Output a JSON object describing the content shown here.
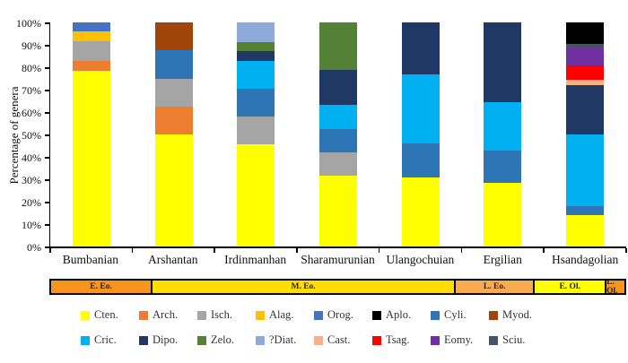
{
  "chart_data": {
    "type": "bar",
    "variant": "stacked-percentage",
    "title": "",
    "ylabel": "Percentage of genera",
    "xlabel": "",
    "ylim": [
      0,
      100
    ],
    "grid": false,
    "y_tick_labels": [
      "0%",
      "10%",
      "20%",
      "30%",
      "40%",
      "50%",
      "60%",
      "70%",
      "80%",
      "90%",
      "100%"
    ],
    "categories": [
      "Bumbanian",
      "Arshantan",
      "Irdinmanhan",
      "Sharamurunian",
      "Ulangochuian",
      "Ergilian",
      "Hsandagolian"
    ],
    "taxa": [
      {
        "name": "Cten.",
        "color": "#FFFF00"
      },
      {
        "name": "Arch.",
        "color": "#ED7D31"
      },
      {
        "name": "Isch.",
        "color": "#A5A5A5"
      },
      {
        "name": "Alag.",
        "color": "#FFC000"
      },
      {
        "name": "Orog.",
        "color": "#4472C4"
      },
      {
        "name": "Aplo.",
        "color": "#000000"
      },
      {
        "name": "Cyli.",
        "color": "#2E75B6"
      },
      {
        "name": "Myod.",
        "color": "#A0440A"
      },
      {
        "name": "Cric.",
        "color": "#00B0F0"
      },
      {
        "name": "Dipo.",
        "color": "#1F3864"
      },
      {
        "name": "Zelo.",
        "color": "#538135"
      },
      {
        "name": "?Diat.",
        "color": "#8EAADB"
      },
      {
        "name": "Cast.",
        "color": "#F4B183"
      },
      {
        "name": "Tsag.",
        "color": "#FF0000"
      },
      {
        "name": "Eomy.",
        "color": "#7030A0"
      },
      {
        "name": "Sciu.",
        "color": "#44546A"
      }
    ],
    "bars": {
      "Bumbanian": [
        {
          "taxon": "Cten.",
          "value": 78.5
        },
        {
          "taxon": "Arch.",
          "value": 4.5
        },
        {
          "taxon": "Isch.",
          "value": 8.5
        },
        {
          "taxon": "Alag.",
          "value": 4.5
        },
        {
          "taxon": "Orog.",
          "value": 4.0
        }
      ],
      "Arshantan": [
        {
          "taxon": "Cten.",
          "value": 50.0
        },
        {
          "taxon": "Arch.",
          "value": 12.5
        },
        {
          "taxon": "Isch.",
          "value": 12.5
        },
        {
          "taxon": "Cyli.",
          "value": 12.5
        },
        {
          "taxon": "Myod.",
          "value": 12.5
        }
      ],
      "Irdinmanhan": [
        {
          "taxon": "Cten.",
          "value": 45.5
        },
        {
          "taxon": "Isch.",
          "value": 12.5
        },
        {
          "taxon": "Cyli.",
          "value": 12.5
        },
        {
          "taxon": "Cric.",
          "value": 12.5
        },
        {
          "taxon": "Dipo.",
          "value": 4.2
        },
        {
          "taxon": "Zelo.",
          "value": 4.2
        },
        {
          "taxon": "?Diat.",
          "value": 8.6
        }
      ],
      "Sharamurunian": [
        {
          "taxon": "Cten.",
          "value": 31.6
        },
        {
          "taxon": "Isch.",
          "value": 10.5
        },
        {
          "taxon": "Cyli.",
          "value": 10.5
        },
        {
          "taxon": "Cric.",
          "value": 10.5
        },
        {
          "taxon": "Dipo.",
          "value": 15.8
        },
        {
          "taxon": "Zelo.",
          "value": 21.1
        }
      ],
      "Ulangochuian": [
        {
          "taxon": "Cten.",
          "value": 30.8
        },
        {
          "taxon": "Cyli.",
          "value": 15.4
        },
        {
          "taxon": "Cric.",
          "value": 30.8
        },
        {
          "taxon": "Dipo.",
          "value": 23.0
        }
      ],
      "Ergilian": [
        {
          "taxon": "Cten.",
          "value": 28.6
        },
        {
          "taxon": "Cyli.",
          "value": 14.3
        },
        {
          "taxon": "Cric.",
          "value": 21.4
        },
        {
          "taxon": "Dipo.",
          "value": 35.7
        }
      ],
      "Hsandagolian": [
        {
          "taxon": "Cten.",
          "value": 14.0
        },
        {
          "taxon": "Cyli.",
          "value": 4.0
        },
        {
          "taxon": "Cric.",
          "value": 32.0
        },
        {
          "taxon": "Dipo.",
          "value": 22.0
        },
        {
          "taxon": "Cast.",
          "value": 2.5
        },
        {
          "taxon": "Tsag.",
          "value": 6.5
        },
        {
          "taxon": "Eomy.",
          "value": 7.5
        },
        {
          "taxon": "Sciu.",
          "value": 2.0
        },
        {
          "taxon": "Aplo.",
          "value": 9.5
        }
      ]
    },
    "era_band": [
      {
        "label": "E. Eo.",
        "color": "#F7941E",
        "width_pct": 17.7
      },
      {
        "label": "M. Eo.",
        "color": "#FFDD00",
        "width_pct": 52.9
      },
      {
        "label": "L. Eo.",
        "color": "#F9AC4F",
        "width_pct": 13.8
      },
      {
        "label": "E. Ol.",
        "color": "#FFFF00",
        "width_pct": 12.5
      },
      {
        "label": "L. Ol.",
        "color": "#F7941E",
        "width_pct": 3.1
      }
    ],
    "legend_rows": [
      [
        "Cten.",
        "Arch.",
        "Isch.",
        "Alag.",
        "Orog.",
        "Aplo.",
        "Cyli.",
        "Myod."
      ],
      [
        "Cric.",
        "Dipo.",
        "Zelo.",
        "?Diat.",
        "Cast.",
        "Tsag.",
        "Eomy.",
        "Sciu."
      ]
    ],
    "legend_position": "bottom"
  }
}
